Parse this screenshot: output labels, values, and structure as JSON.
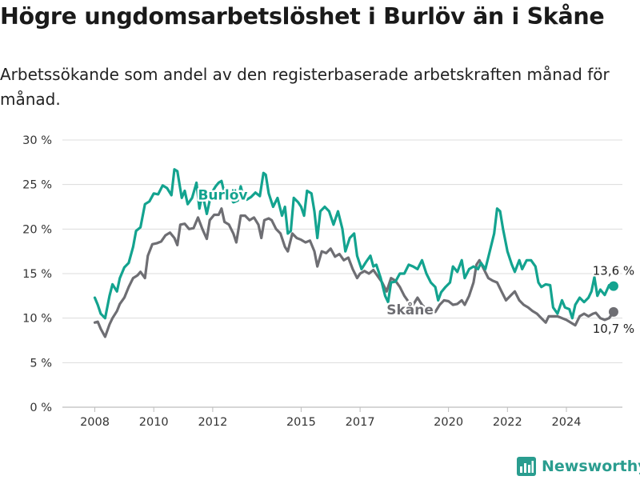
{
  "title": "Högre ungdomsarbetslöshet i Burlöv än i Skåne",
  "subtitle": "Arbetssökande som andel av den registerbaserade arbetskraften månad för månad.",
  "brand": {
    "name": "Newsworthy",
    "color": "#2a9d8f",
    "icon": "bar-chart-logo-icon"
  },
  "chart_data": {
    "type": "line",
    "title": "Högre ungdomsarbetslöshet i Burlöv än i Skåne",
    "subtitle": "Arbetssökande som andel av den registerbaserade arbetskraften månad för månad.",
    "xlabel": "",
    "ylabel": "",
    "ylim": [
      0,
      30
    ],
    "xlim": [
      2006.9,
      2025.9
    ],
    "grid": "horizontal",
    "y_ticks": [
      {
        "value": 0,
        "label": "0 %"
      },
      {
        "value": 5,
        "label": "5 %"
      },
      {
        "value": 10,
        "label": "10 %"
      },
      {
        "value": 15,
        "label": "15 %"
      },
      {
        "value": 20,
        "label": "20 %"
      },
      {
        "value": 25,
        "label": "25 %"
      },
      {
        "value": 30,
        "label": "30 %"
      }
    ],
    "x_ticks": [
      {
        "value": 2008,
        "label": "2008"
      },
      {
        "value": 2010,
        "label": "2010"
      },
      {
        "value": 2012,
        "label": "2012"
      },
      {
        "value": 2015,
        "label": "2015"
      },
      {
        "value": 2017,
        "label": "2017"
      },
      {
        "value": 2020,
        "label": "2020"
      },
      {
        "value": 2022,
        "label": "2022"
      },
      {
        "value": 2024,
        "label": "2024"
      }
    ],
    "series": [
      {
        "name": "Burlöv",
        "color": "#13a38f",
        "label_at": [
          2011.5,
          23.3
        ],
        "end_label": "13,6 %",
        "points": [
          [
            2008.0,
            12.3
          ],
          [
            2008.1,
            11.5
          ],
          [
            2008.2,
            10.5
          ],
          [
            2008.35,
            10.0
          ],
          [
            2008.5,
            12.5
          ],
          [
            2008.6,
            13.8
          ],
          [
            2008.75,
            13.0
          ],
          [
            2008.85,
            14.5
          ],
          [
            2009.0,
            15.7
          ],
          [
            2009.15,
            16.2
          ],
          [
            2009.3,
            18.0
          ],
          [
            2009.4,
            19.8
          ],
          [
            2009.55,
            20.2
          ],
          [
            2009.7,
            22.8
          ],
          [
            2009.85,
            23.1
          ],
          [
            2010.0,
            24.0
          ],
          [
            2010.15,
            23.9
          ],
          [
            2010.3,
            24.9
          ],
          [
            2010.45,
            24.6
          ],
          [
            2010.6,
            23.8
          ],
          [
            2010.7,
            26.7
          ],
          [
            2010.8,
            26.5
          ],
          [
            2010.95,
            23.5
          ],
          [
            2011.05,
            24.3
          ],
          [
            2011.15,
            22.8
          ],
          [
            2011.3,
            23.5
          ],
          [
            2011.45,
            25.2
          ],
          [
            2011.55,
            22.3
          ],
          [
            2011.65,
            24.0
          ],
          [
            2011.8,
            21.7
          ],
          [
            2011.95,
            24.0
          ],
          [
            2012.1,
            24.8
          ],
          [
            2012.2,
            25.2
          ],
          [
            2012.3,
            25.4
          ],
          [
            2012.4,
            24.0
          ],
          [
            2012.55,
            23.9
          ],
          [
            2012.7,
            23.0
          ],
          [
            2012.85,
            23.2
          ],
          [
            2012.95,
            24.8
          ],
          [
            2013.05,
            23.5
          ],
          [
            2013.15,
            23.3
          ],
          [
            2013.3,
            23.6
          ],
          [
            2013.45,
            24.1
          ],
          [
            2013.6,
            23.7
          ],
          [
            2013.72,
            26.3
          ],
          [
            2013.8,
            26.1
          ],
          [
            2013.9,
            24.0
          ],
          [
            2014.05,
            22.5
          ],
          [
            2014.2,
            23.5
          ],
          [
            2014.35,
            21.5
          ],
          [
            2014.45,
            22.5
          ],
          [
            2014.55,
            19.5
          ],
          [
            2014.65,
            19.8
          ],
          [
            2014.75,
            23.5
          ],
          [
            2014.9,
            23.0
          ],
          [
            2015.0,
            22.5
          ],
          [
            2015.1,
            21.5
          ],
          [
            2015.2,
            24.3
          ],
          [
            2015.35,
            24.0
          ],
          [
            2015.45,
            22.0
          ],
          [
            2015.55,
            19.0
          ],
          [
            2015.65,
            22.0
          ],
          [
            2015.8,
            22.5
          ],
          [
            2015.95,
            22.0
          ],
          [
            2016.1,
            20.5
          ],
          [
            2016.25,
            22.0
          ],
          [
            2016.4,
            20.0
          ],
          [
            2016.5,
            17.5
          ],
          [
            2016.65,
            19.0
          ],
          [
            2016.8,
            19.5
          ],
          [
            2016.9,
            17.0
          ],
          [
            2017.05,
            15.5
          ],
          [
            2017.2,
            16.3
          ],
          [
            2017.35,
            17.0
          ],
          [
            2017.45,
            15.8
          ],
          [
            2017.55,
            16.0
          ],
          [
            2017.7,
            14.5
          ],
          [
            2017.85,
            12.5
          ],
          [
            2017.95,
            11.8
          ],
          [
            2018.05,
            14.0
          ],
          [
            2018.2,
            14.1
          ],
          [
            2018.35,
            15.0
          ],
          [
            2018.5,
            15.0
          ],
          [
            2018.65,
            16.0
          ],
          [
            2018.8,
            15.8
          ],
          [
            2018.95,
            15.5
          ],
          [
            2019.1,
            16.5
          ],
          [
            2019.25,
            15.0
          ],
          [
            2019.4,
            14.0
          ],
          [
            2019.55,
            13.5
          ],
          [
            2019.65,
            12.0
          ],
          [
            2019.75,
            12.9
          ],
          [
            2019.9,
            13.5
          ],
          [
            2020.05,
            14.0
          ],
          [
            2020.15,
            15.8
          ],
          [
            2020.3,
            15.2
          ],
          [
            2020.45,
            16.5
          ],
          [
            2020.55,
            14.5
          ],
          [
            2020.7,
            15.5
          ],
          [
            2020.85,
            15.8
          ],
          [
            2021.0,
            15.5
          ],
          [
            2021.1,
            16.2
          ],
          [
            2021.25,
            15.5
          ],
          [
            2021.4,
            17.5
          ],
          [
            2021.55,
            19.5
          ],
          [
            2021.65,
            22.3
          ],
          [
            2021.75,
            22.0
          ],
          [
            2021.85,
            20.0
          ],
          [
            2022.0,
            17.5
          ],
          [
            2022.15,
            16.0
          ],
          [
            2022.25,
            15.2
          ],
          [
            2022.4,
            16.5
          ],
          [
            2022.5,
            15.5
          ],
          [
            2022.65,
            16.5
          ],
          [
            2022.8,
            16.5
          ],
          [
            2022.95,
            15.8
          ],
          [
            2023.05,
            14.0
          ],
          [
            2023.15,
            13.5
          ],
          [
            2023.3,
            13.8
          ],
          [
            2023.45,
            13.7
          ],
          [
            2023.55,
            11.2
          ],
          [
            2023.7,
            10.5
          ],
          [
            2023.85,
            12.0
          ],
          [
            2023.95,
            11.2
          ],
          [
            2024.1,
            11.0
          ],
          [
            2024.2,
            10.0
          ],
          [
            2024.3,
            11.5
          ],
          [
            2024.45,
            12.3
          ],
          [
            2024.6,
            11.8
          ],
          [
            2024.75,
            12.3
          ],
          [
            2024.85,
            13.0
          ],
          [
            2024.95,
            14.6
          ],
          [
            2025.05,
            12.5
          ],
          [
            2025.15,
            13.2
          ],
          [
            2025.3,
            12.6
          ],
          [
            2025.45,
            13.7
          ],
          [
            2025.6,
            13.6
          ]
        ]
      },
      {
        "name": "Skåne",
        "color": "#6e6e73",
        "label_at": [
          2017.9,
          10.4
        ],
        "end_label": "10,7 %",
        "points": [
          [
            2008.0,
            9.5
          ],
          [
            2008.1,
            9.6
          ],
          [
            2008.2,
            8.8
          ],
          [
            2008.35,
            7.9
          ],
          [
            2008.5,
            9.3
          ],
          [
            2008.6,
            10.0
          ],
          [
            2008.75,
            10.8
          ],
          [
            2008.85,
            11.6
          ],
          [
            2009.0,
            12.3
          ],
          [
            2009.15,
            13.5
          ],
          [
            2009.3,
            14.5
          ],
          [
            2009.45,
            14.8
          ],
          [
            2009.55,
            15.2
          ],
          [
            2009.7,
            14.5
          ],
          [
            2009.8,
            17.0
          ],
          [
            2009.95,
            18.3
          ],
          [
            2010.1,
            18.4
          ],
          [
            2010.25,
            18.6
          ],
          [
            2010.4,
            19.3
          ],
          [
            2010.55,
            19.6
          ],
          [
            2010.7,
            19.0
          ],
          [
            2010.8,
            18.2
          ],
          [
            2010.9,
            20.5
          ],
          [
            2011.05,
            20.6
          ],
          [
            2011.2,
            20.0
          ],
          [
            2011.35,
            20.1
          ],
          [
            2011.5,
            21.3
          ],
          [
            2011.65,
            20.0
          ],
          [
            2011.8,
            18.9
          ],
          [
            2011.9,
            21.0
          ],
          [
            2012.05,
            21.6
          ],
          [
            2012.2,
            21.6
          ],
          [
            2012.3,
            22.3
          ],
          [
            2012.4,
            20.8
          ],
          [
            2012.55,
            20.5
          ],
          [
            2012.7,
            19.5
          ],
          [
            2012.8,
            18.5
          ],
          [
            2012.95,
            21.5
          ],
          [
            2013.1,
            21.5
          ],
          [
            2013.25,
            21.0
          ],
          [
            2013.4,
            21.3
          ],
          [
            2013.55,
            20.5
          ],
          [
            2013.65,
            19.0
          ],
          [
            2013.75,
            21.0
          ],
          [
            2013.9,
            21.2
          ],
          [
            2014.0,
            21.0
          ],
          [
            2014.15,
            20.0
          ],
          [
            2014.3,
            19.5
          ],
          [
            2014.45,
            18.0
          ],
          [
            2014.55,
            17.5
          ],
          [
            2014.7,
            19.5
          ],
          [
            2014.85,
            19.0
          ],
          [
            2015.0,
            18.8
          ],
          [
            2015.15,
            18.5
          ],
          [
            2015.3,
            18.7
          ],
          [
            2015.45,
            17.5
          ],
          [
            2015.55,
            15.8
          ],
          [
            2015.7,
            17.5
          ],
          [
            2015.85,
            17.3
          ],
          [
            2016.0,
            17.8
          ],
          [
            2016.15,
            16.9
          ],
          [
            2016.3,
            17.2
          ],
          [
            2016.45,
            16.5
          ],
          [
            2016.6,
            16.8
          ],
          [
            2016.75,
            15.5
          ],
          [
            2016.9,
            14.5
          ],
          [
            2017.0,
            15.0
          ],
          [
            2017.15,
            15.3
          ],
          [
            2017.3,
            15.0
          ],
          [
            2017.45,
            15.4
          ],
          [
            2017.6,
            14.7
          ],
          [
            2017.75,
            14.0
          ],
          [
            2017.9,
            13.0
          ],
          [
            2018.05,
            14.5
          ],
          [
            2018.2,
            14.2
          ],
          [
            2018.35,
            13.5
          ],
          [
            2018.5,
            12.5
          ],
          [
            2018.65,
            11.8
          ],
          [
            2018.8,
            11.5
          ],
          [
            2018.95,
            12.3
          ],
          [
            2019.1,
            11.5
          ],
          [
            2019.25,
            11.0
          ],
          [
            2019.4,
            10.9
          ],
          [
            2019.55,
            10.7
          ],
          [
            2019.7,
            11.5
          ],
          [
            2019.85,
            12.0
          ],
          [
            2020.0,
            11.9
          ],
          [
            2020.15,
            11.5
          ],
          [
            2020.3,
            11.6
          ],
          [
            2020.45,
            12.0
          ],
          [
            2020.55,
            11.5
          ],
          [
            2020.7,
            12.5
          ],
          [
            2020.85,
            14.0
          ],
          [
            2020.95,
            16.0
          ],
          [
            2021.05,
            16.5
          ],
          [
            2021.2,
            15.5
          ],
          [
            2021.35,
            14.5
          ],
          [
            2021.5,
            14.2
          ],
          [
            2021.65,
            14.0
          ],
          [
            2021.8,
            13.0
          ],
          [
            2021.95,
            12.0
          ],
          [
            2022.1,
            12.5
          ],
          [
            2022.25,
            13.0
          ],
          [
            2022.4,
            12.0
          ],
          [
            2022.55,
            11.5
          ],
          [
            2022.7,
            11.2
          ],
          [
            2022.85,
            10.8
          ],
          [
            2023.0,
            10.5
          ],
          [
            2023.15,
            10.0
          ],
          [
            2023.3,
            9.5
          ],
          [
            2023.4,
            10.2
          ],
          [
            2023.55,
            10.2
          ],
          [
            2023.7,
            10.2
          ],
          [
            2023.85,
            10.0
          ],
          [
            2024.0,
            9.8
          ],
          [
            2024.15,
            9.5
          ],
          [
            2024.3,
            9.2
          ],
          [
            2024.45,
            10.2
          ],
          [
            2024.6,
            10.5
          ],
          [
            2024.75,
            10.2
          ],
          [
            2024.9,
            10.5
          ],
          [
            2025.0,
            10.6
          ],
          [
            2025.15,
            10.0
          ],
          [
            2025.3,
            9.8
          ],
          [
            2025.45,
            10.0
          ],
          [
            2025.6,
            10.7
          ]
        ]
      }
    ]
  }
}
